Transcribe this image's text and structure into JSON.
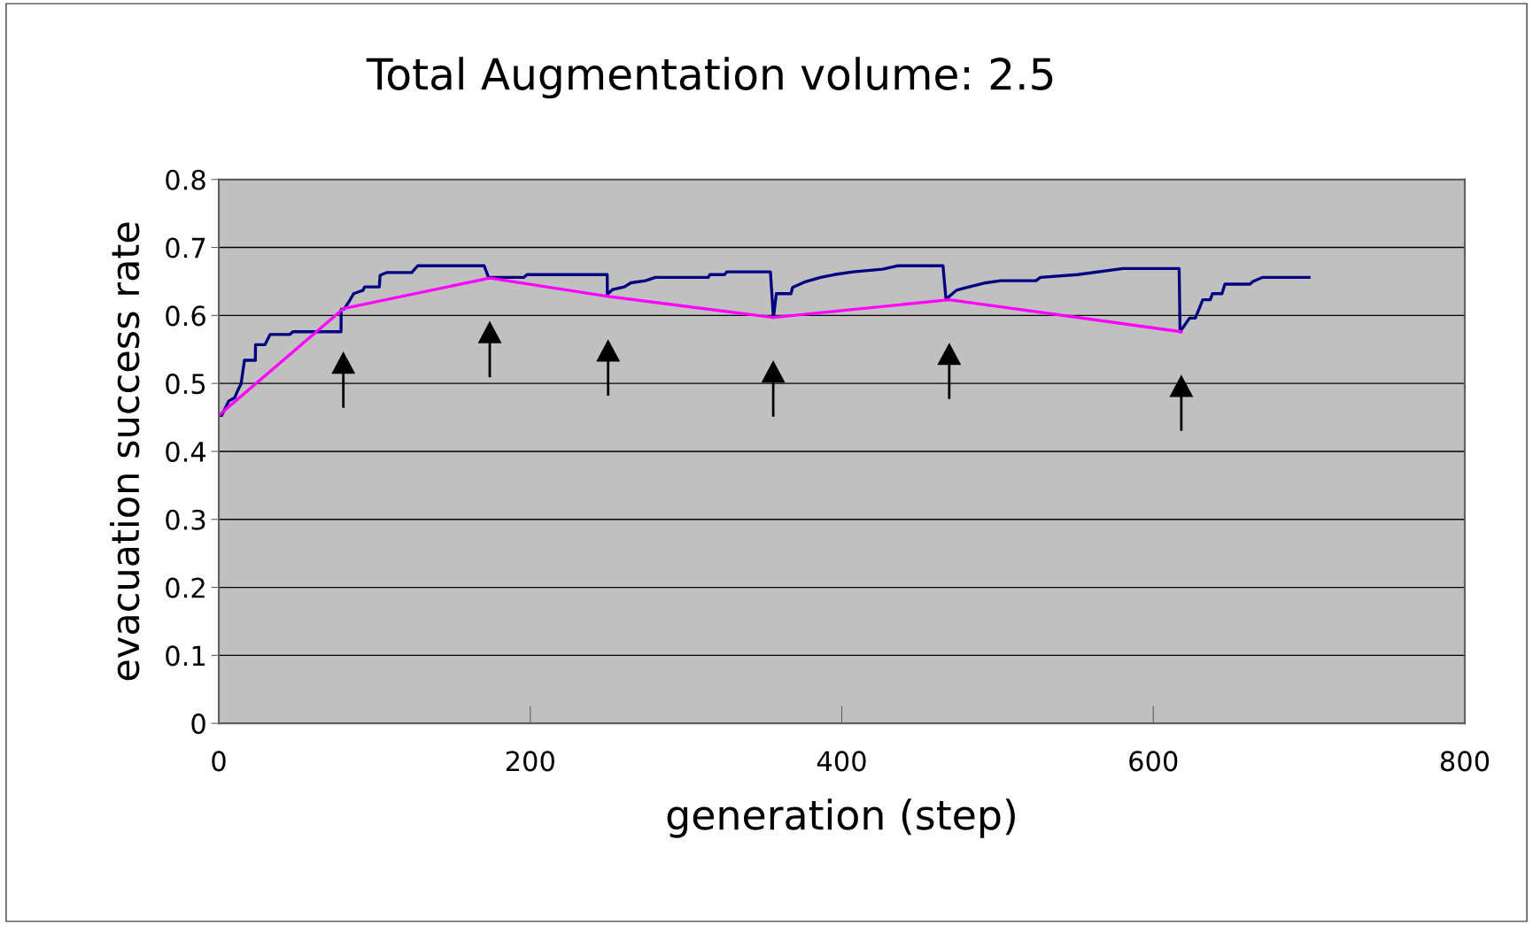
{
  "chart_data": {
    "type": "line",
    "title": "Total Augmentation volume: 2.5",
    "xlabel": "generation (step)",
    "ylabel": "evacuation success rate",
    "xlim": [
      0,
      800
    ],
    "xticks": [
      0,
      200,
      400,
      600,
      800
    ],
    "ylim": [
      0,
      0.8
    ],
    "yticks": [
      0,
      0.1,
      0.2,
      0.3,
      0.4,
      0.5,
      0.6,
      0.7,
      0.8
    ],
    "grid": "y",
    "legend": false,
    "marker": "none",
    "line_style": "solid",
    "series": [
      {
        "color": "#000080",
        "x": [
          0.7,
          1.9,
          6.4,
          10.2,
          13.1,
          14.3,
          16.5,
          23.5,
          23.6,
          29.7,
          33,
          45.7,
          47.6,
          78.5,
          78.6,
          80.4,
          84.1,
          86.6,
          92.7,
          93.6,
          103.1,
          103.6,
          107.7,
          123.9,
          127.7,
          170.4,
          173.2,
          196,
          197.9,
          249.4,
          249.5,
          252.8,
          260.4,
          264.6,
          274,
          280.3,
          314.4,
          315.3,
          324.8,
          326.1,
          354.2,
          356.1,
          358,
          367.4,
          368.4,
          376,
          386.4,
          395,
          407.2,
          426.2,
          435.6,
          465,
          466.9,
          473.6,
          480,
          492.5,
          502,
          524.7,
          527.5,
          551.3,
          580.6,
          616.6,
          617.2,
          623.3,
          627,
          631.8,
          636.6,
          638,
          644.1,
          646,
          662.1,
          664,
          670.3,
          700
        ],
        "values": [
          0.453,
          0.453,
          0.474,
          0.479,
          0.494,
          0.499,
          0.534,
          0.534,
          0.557,
          0.557,
          0.572,
          0.572,
          0.576,
          0.576,
          0.609,
          0.609,
          0.622,
          0.632,
          0.637,
          0.642,
          0.642,
          0.659,
          0.663,
          0.663,
          0.673,
          0.673,
          0.656,
          0.656,
          0.66,
          0.66,
          0.631,
          0.638,
          0.642,
          0.648,
          0.651,
          0.656,
          0.656,
          0.66,
          0.66,
          0.664,
          0.664,
          0.597,
          0.632,
          0.632,
          0.641,
          0.649,
          0.656,
          0.66,
          0.664,
          0.668,
          0.673,
          0.673,
          0.624,
          0.637,
          0.641,
          0.648,
          0.651,
          0.651,
          0.656,
          0.66,
          0.669,
          0.669,
          0.576,
          0.596,
          0.596,
          0.623,
          0.623,
          0.632,
          0.632,
          0.646,
          0.646,
          0.65,
          0.656,
          0.656
        ]
      },
      {
        "color": "#ff00ff",
        "x": [
          0,
          80,
          174,
          250,
          356,
          469,
          618
        ],
        "values": [
          0.453,
          0.61,
          0.655,
          0.628,
          0.597,
          0.623,
          0.576
        ]
      }
    ]
  }
}
